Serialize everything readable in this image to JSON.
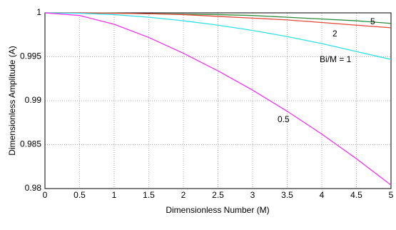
{
  "chart_data": {
    "type": "line",
    "x_label": "Dimensionless Number (M)",
    "y_label": "Dimensionless Amplitude (A)",
    "x": [
      0,
      0.5,
      1,
      1.5,
      2,
      2.5,
      3,
      3.5,
      4,
      4.5,
      5
    ],
    "series": [
      {
        "name": "5",
        "color": "#2e8b3e",
        "values": [
          1,
          1,
          0.99998,
          0.9999,
          0.99985,
          0.9998,
          0.9997,
          0.9995,
          0.9993,
          0.9991,
          0.9988
        ]
      },
      {
        "name": "2",
        "color": "#e0483a",
        "values": [
          1,
          1,
          0.99995,
          0.9999,
          0.9998,
          0.9996,
          0.9994,
          0.9992,
          0.9989,
          0.9986,
          0.9983
        ]
      },
      {
        "name": "Bi/M = 1",
        "color": "#33e0e8",
        "values": [
          1,
          0.99995,
          0.9998,
          0.9995,
          0.9991,
          0.9986,
          0.998,
          0.9973,
          0.9965,
          0.9956,
          0.9947
        ]
      },
      {
        "name": "0.5",
        "color": "#ee33ee",
        "values": [
          1,
          0.9997,
          0.9987,
          0.9972,
          0.9954,
          0.9934,
          0.9912,
          0.9888,
          0.9862,
          0.9834,
          0.9804
        ]
      }
    ],
    "xlim": [
      0,
      5
    ],
    "xticks": [
      0,
      0.5,
      1,
      1.5,
      2,
      2.5,
      3,
      3.5,
      4,
      4.5,
      5
    ],
    "ylim": [
      0.98,
      1
    ],
    "yticks": [
      0.98,
      0.985,
      0.99,
      0.995,
      1
    ],
    "grid": true
  }
}
